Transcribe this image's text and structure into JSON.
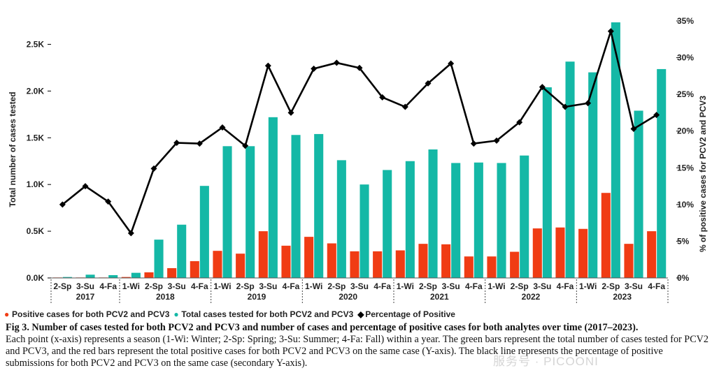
{
  "chart_data": {
    "type": "bar",
    "xlabel_groups": [
      {
        "year": "2017",
        "seasons": [
          "2-Sp",
          "3-Su",
          "4-Fa"
        ]
      },
      {
        "year": "2018",
        "seasons": [
          "1-Wi",
          "2-Sp",
          "3-Su",
          "4-Fa"
        ]
      },
      {
        "year": "2019",
        "seasons": [
          "1-Wi",
          "2-Sp",
          "3-Su",
          "4-Fa"
        ]
      },
      {
        "year": "2020",
        "seasons": [
          "1-Wi",
          "2-Sp",
          "3-Su",
          "4-Fa"
        ]
      },
      {
        "year": "2021",
        "seasons": [
          "1-Wi",
          "2-Sp",
          "3-Su",
          "4-Fa"
        ]
      },
      {
        "year": "2022",
        "seasons": [
          "1-Wi",
          "2-Sp",
          "3-Su",
          "4-Fa"
        ]
      },
      {
        "year": "2023",
        "seasons": [
          "1-Wi",
          "2-Sp",
          "3-Su",
          "4-Fa"
        ]
      }
    ],
    "series": [
      {
        "name": "Positive cases for both PCV2 and PCV3",
        "kind": "bar",
        "axis": "left",
        "color": "#f03c14",
        "values": [
          5,
          5,
          5,
          10,
          60,
          105,
          180,
          290,
          260,
          500,
          345,
          440,
          370,
          285,
          285,
          295,
          365,
          360,
          230,
          230,
          280,
          530,
          540,
          525,
          910,
          365,
          500
        ]
      },
      {
        "name": "Total cases tested for both PCV2 and PCV3",
        "kind": "bar",
        "axis": "left",
        "color": "#14b8a6",
        "values": [
          10,
          35,
          30,
          55,
          410,
          570,
          985,
          1410,
          1410,
          1720,
          1530,
          1540,
          1260,
          1000,
          1155,
          1250,
          1375,
          1230,
          1235,
          1230,
          1310,
          2040,
          2315,
          2200,
          2735,
          1790,
          2235
        ]
      },
      {
        "name": "Percentage of Positive",
        "kind": "line",
        "axis": "right",
        "color": "#000000",
        "values": [
          10,
          12.5,
          10.4,
          6.1,
          14.9,
          18.4,
          18.3,
          20.5,
          18,
          28.9,
          22.5,
          28.5,
          29.3,
          28.6,
          24.6,
          23.3,
          26.5,
          29.2,
          18.3,
          18.7,
          21.2,
          26,
          23.3,
          23.8,
          33.6,
          20.3,
          22.2
        ]
      }
    ],
    "yleft": {
      "label": "Total number of cases tested",
      "ticks": [
        "0.0K",
        "0.5K",
        "1.0K",
        "1.5K",
        "2.0K",
        "2.5K"
      ],
      "lim": [
        0,
        2750
      ]
    },
    "yright": {
      "label": "% of positive cases for PCV2 and PCV3",
      "ticks": [
        "0%",
        "5%",
        "10%",
        "15%",
        "20%",
        "25%",
        "30%",
        "35%"
      ],
      "lim": [
        0,
        35
      ]
    },
    "legend": [
      {
        "marker": "●",
        "label": "Positive cases for both PCV2 and PCV3",
        "color": "#f03c14"
      },
      {
        "marker": "●",
        "label": "Total cases tested for both PCV2 and PCV3",
        "color": "#14b8a6"
      },
      {
        "marker": "◆",
        "label": "Percentage of Positive",
        "color": "#000000"
      }
    ]
  },
  "caption": {
    "title": "Fig 3. Number of cases tested for both PCV2 and PCV3 and number of cases and percentage of positive cases for both analytes over time (2017–2023).",
    "body": "Each point (x-axis) represents a season (1-Wi: Winter; 2-Sp: Spring; 3-Su: Summer; 4-Fa: Fall) within a year. The green bars represent the total number of cases tested for PCV2 and PCV3, and the red bars represent the total positive cases for both PCV2 and PCV3 on the same case (Y-axis). The black line represents the percentage of positive submissions for both PCV2 and PCV3 on the same case (secondary Y-axis)."
  },
  "watermark": "服务号 · PICOONI"
}
